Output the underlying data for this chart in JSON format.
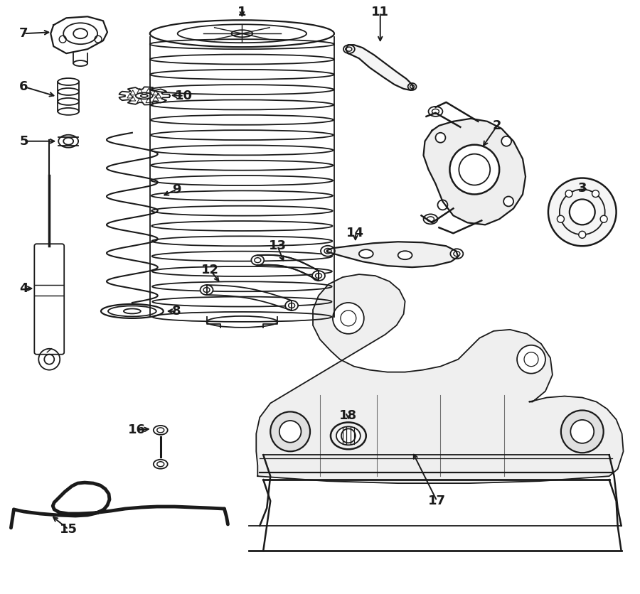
{
  "background_color": "#ffffff",
  "line_color": "#1a1a1a",
  "label_color": "#000000",
  "figsize": [
    9.0,
    8.36
  ],
  "dpi": 100,
  "lw": 1.3
}
